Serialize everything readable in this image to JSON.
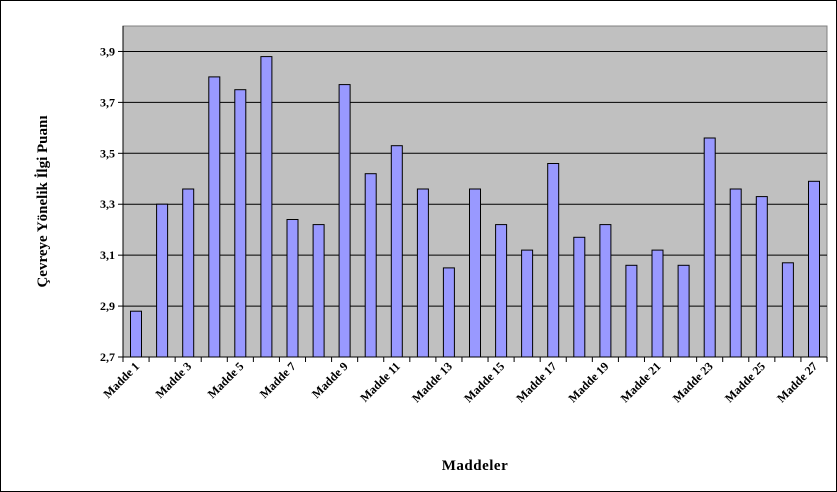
{
  "chart_data": {
    "type": "bar",
    "title": "",
    "xlabel": "Maddeler",
    "ylabel": "Çevreye Yönelik İlgi Puanı",
    "ylim": [
      2.7,
      4.0
    ],
    "yticks": [
      "2,7",
      "2,9",
      "3,1",
      "3,3",
      "3,5",
      "3,7",
      "3,9"
    ],
    "grid": true,
    "legend": "none",
    "categories": [
      "Madde 1",
      "Madde 2",
      "Madde 3",
      "Madde 4",
      "Madde 5",
      "Madde 6",
      "Madde 7",
      "Madde 8",
      "Madde 9",
      "Madde 10",
      "Madde 11",
      "Madde 12",
      "Madde 13",
      "Madde 14",
      "Madde 15",
      "Madde 16",
      "Madde 17",
      "Madde 18",
      "Madde 19",
      "Madde 20",
      "Madde 21",
      "Madde 22",
      "Madde 23",
      "Madde 24",
      "Madde 25",
      "Madde 26",
      "Madde 27"
    ],
    "shown_category_labels": [
      "Madde 1",
      "Madde 3",
      "Madde 5",
      "Madde 7",
      "Madde 9",
      "Madde 11",
      "Madde 13",
      "Madde 15",
      "Madde 17",
      "Madde 19",
      "Madde 21",
      "Madde 23",
      "Madde 25",
      "Madde 27"
    ],
    "values": [
      2.88,
      3.3,
      3.36,
      3.8,
      3.75,
      3.88,
      3.24,
      3.22,
      3.77,
      3.42,
      3.53,
      3.36,
      3.05,
      3.36,
      3.22,
      3.12,
      3.46,
      3.17,
      3.22,
      3.06,
      3.12,
      3.06,
      3.56,
      3.36,
      3.33,
      3.07,
      3.39
    ],
    "colors": {
      "plot_background": "#c0c0c0",
      "bar_fill": "#9999ff",
      "bar_stroke": "#000000",
      "gridline": "#000000"
    }
  }
}
